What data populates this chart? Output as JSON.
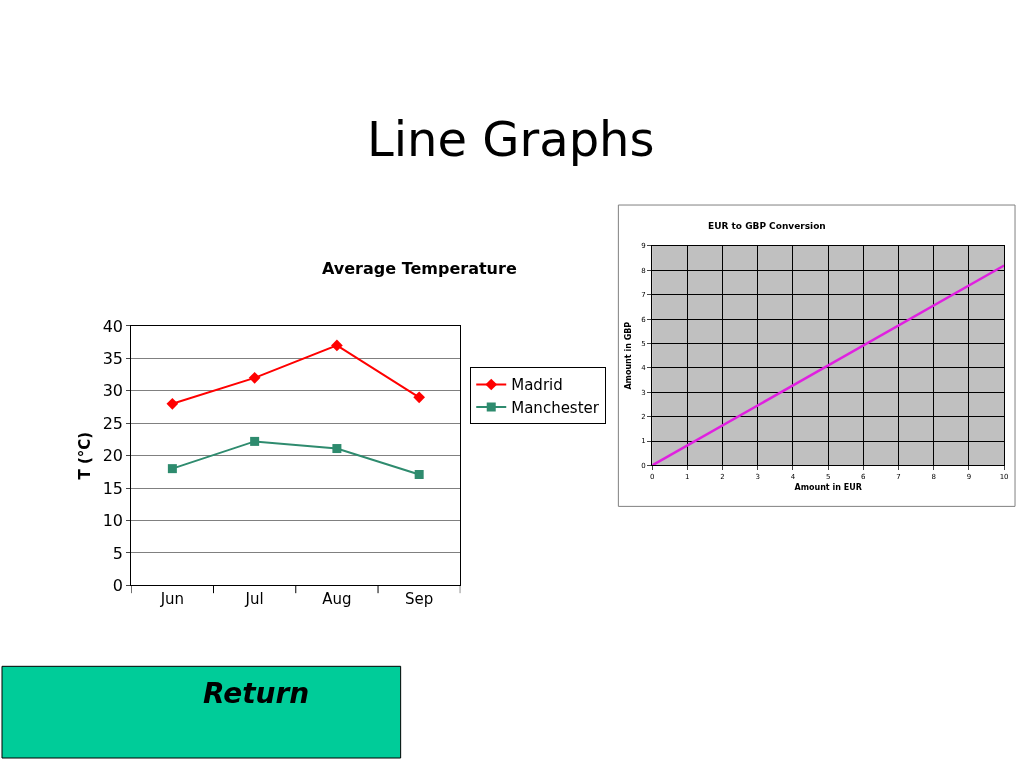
{
  "chart_data": [
    {
      "type": "line",
      "title": "Line Graphs",
      "subtitle": "Average Temperature",
      "ylabel": "T (°C)",
      "categories": [
        "Jun",
        "Jul",
        "Aug",
        "Sep"
      ],
      "series": [
        {
          "name": "Madrid",
          "color": "#ff0000",
          "marker": "diamond",
          "values": [
            28,
            32,
            37,
            29
          ]
        },
        {
          "name": "Manchester",
          "color": "#2e8b6e",
          "marker": "square",
          "values": [
            18,
            22.2,
            21.1,
            17.1
          ]
        }
      ],
      "ylim": [
        0,
        40
      ],
      "yticks": [
        0,
        5,
        10,
        15,
        20,
        25,
        30,
        35,
        40
      ],
      "grid": "y",
      "legend": "right",
      "line_style": "solid",
      "annotations": [
        "Return"
      ]
    },
    {
      "type": "line",
      "title": "EUR to GBP Conversion",
      "xlabel": "Amount in EUR",
      "ylabel": "Amount in GBP",
      "series": [
        {
          "color": "#e020e0",
          "x": [
            0,
            10
          ],
          "values": [
            0,
            8.2
          ]
        }
      ],
      "xlim": [
        0,
        10
      ],
      "xticks": [
        0,
        1,
        2,
        3,
        4,
        5,
        6,
        7,
        8,
        9,
        10
      ],
      "ylim": [
        0,
        9
      ],
      "yticks": [
        0,
        1,
        2,
        3,
        4,
        5,
        6,
        7,
        8,
        9
      ],
      "grid": true,
      "marker": "none",
      "line_style": "solid"
    }
  ]
}
